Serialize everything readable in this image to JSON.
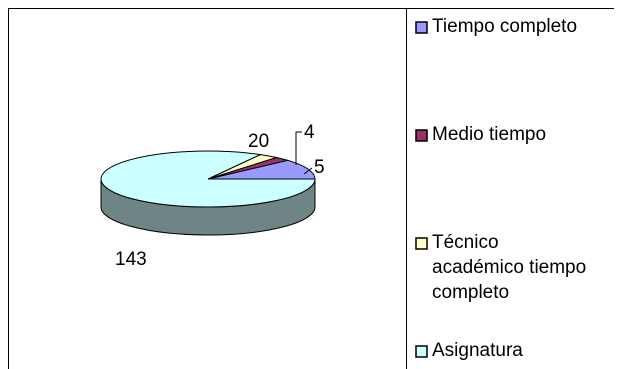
{
  "title": "",
  "chart_data": {
    "type": "pie",
    "is_3d": true,
    "categories": [
      "Tiempo completo",
      "Medio tiempo",
      "Técnico académico tiempo completo",
      "Asignatura"
    ],
    "values": [
      20,
      4,
      5,
      143
    ],
    "colors": [
      "#9999ff",
      "#993366",
      "#ffffcc",
      "#ccffff"
    ],
    "side_color": "#6f8585",
    "data_labels": [
      "20",
      "4",
      "5",
      "143"
    ],
    "legend_position": "right"
  }
}
